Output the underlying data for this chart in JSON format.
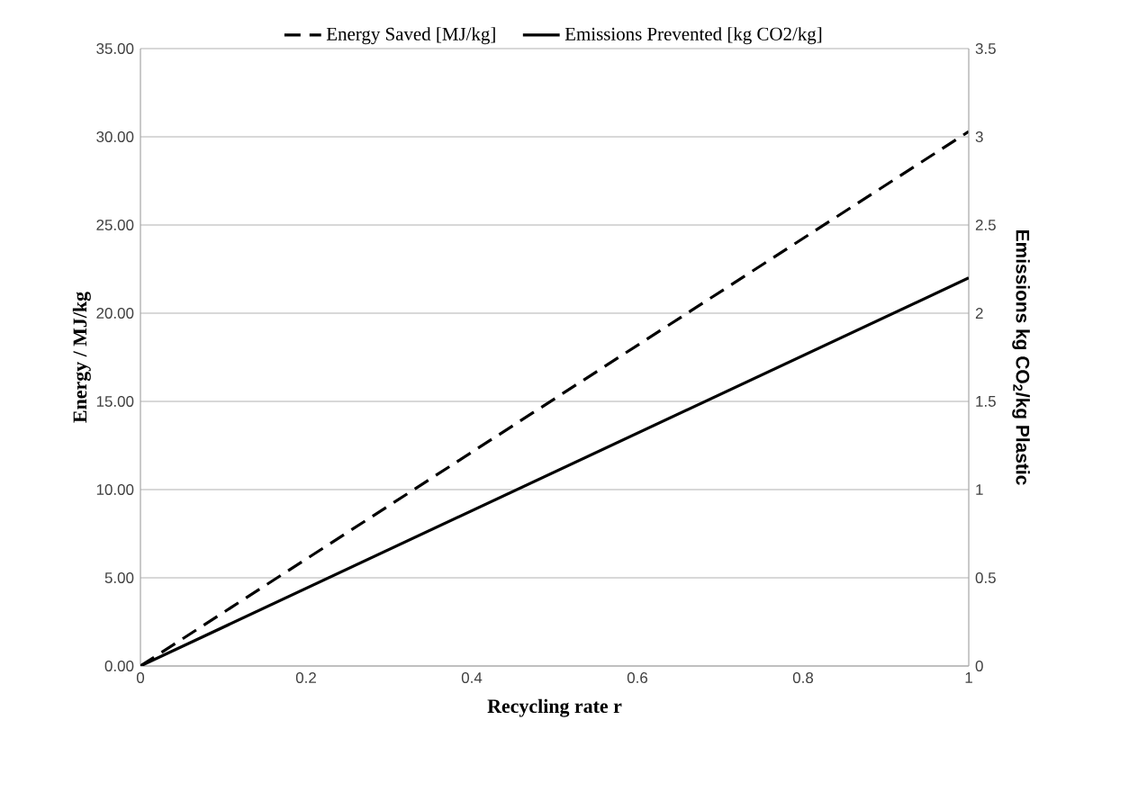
{
  "chart_data": {
    "type": "line",
    "xlabel": "Recycling rate r",
    "ylabel": "Energy / MJ/kg",
    "y2label": "Emissions kg CO$_{2}$/kg Plastic",
    "x": [
      0,
      1
    ],
    "series": [
      {
        "name": "Energy Saved [MJ/kg]",
        "color": "#000000",
        "values": [
          0,
          30.3
        ],
        "line_style": "dashed"
      },
      {
        "name": "Emissions Prevented [kg CO2/kg]",
        "color": "#000000",
        "values": [
          0,
          2.2
        ],
        "line_style": "solid",
        "axis": "y2"
      }
    ],
    "xlim": [
      0,
      1
    ],
    "xticks": [
      0,
      0.2,
      0.4,
      0.6,
      0.8,
      1
    ],
    "ylim": [
      0,
      35
    ],
    "yticks": [
      {
        "value": 0,
        "label": "0.00"
      },
      {
        "value": 5,
        "label": "5.00"
      },
      {
        "value": 10,
        "label": "10.00"
      },
      {
        "value": 15,
        "label": "15.00"
      },
      {
        "value": 20,
        "label": "20.00"
      },
      {
        "value": 25,
        "label": "25.00"
      },
      {
        "value": 30,
        "label": "30.00"
      },
      {
        "value": 35,
        "label": "35.00"
      }
    ],
    "y2lim": [
      0,
      3.5
    ],
    "y2ticks": [
      0,
      0.5,
      1,
      1.5,
      2,
      2.5,
      3,
      3.5
    ],
    "grid": "y",
    "legend": "top"
  }
}
